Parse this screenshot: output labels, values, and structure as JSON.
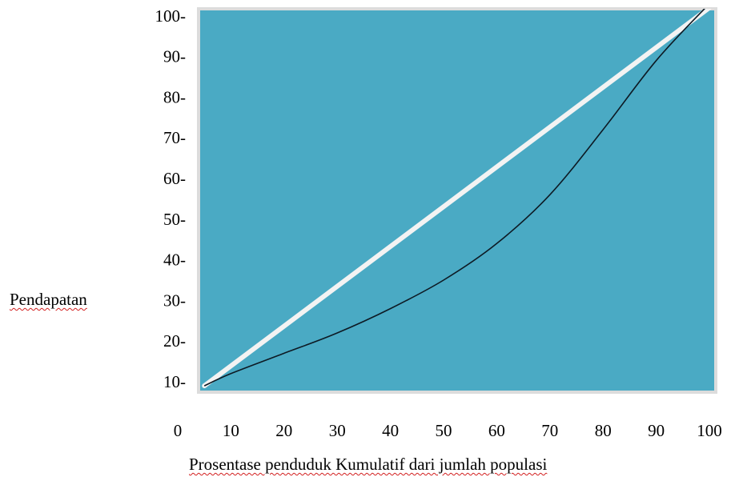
{
  "chart_data": {
    "type": "line",
    "title": "",
    "xlabel": "Prosentase  penduduk Kumulatif dari jumlah  populasi",
    "ylabel": "Pendapatan",
    "x_ticks": [
      "0",
      "10",
      "20",
      "30",
      "40",
      "50",
      "60",
      "70",
      "80",
      "90",
      "100"
    ],
    "y_ticks": [
      "10-",
      "20-",
      "30-",
      "40-",
      "50-",
      "60-",
      "70-",
      "80-",
      "90-",
      "100-"
    ],
    "xlim": [
      0,
      100
    ],
    "ylim": [
      10,
      100
    ],
    "grid": false,
    "legend": "none",
    "colors": {
      "plot_background": "#4aaac4",
      "plot_border": "#dcdcdc",
      "equality_line": "#f3f3f3",
      "curve": "#0d1a24"
    },
    "series": [
      {
        "style": "thick-white-line",
        "x": [
          5,
          100
        ],
        "y": [
          9,
          102
        ]
      },
      {
        "style": "thin-black-curve",
        "x": [
          5,
          10,
          20,
          30,
          40,
          50,
          60,
          70,
          80,
          90,
          100
        ],
        "y": [
          9,
          12,
          17,
          22,
          28,
          35,
          44,
          56,
          72,
          89,
          103
        ]
      }
    ]
  }
}
